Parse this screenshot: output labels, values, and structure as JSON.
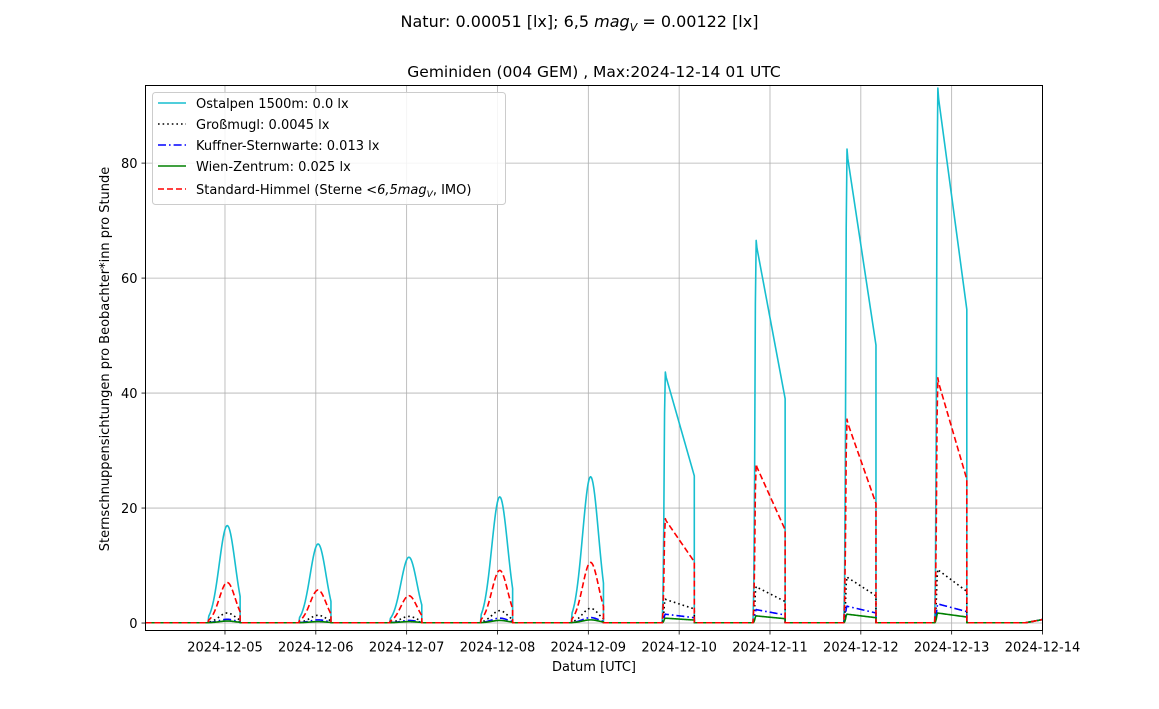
{
  "suptitle": "Natur: 0.00051 [lx]; 6,5 mag_V = 0.00122 [lx]",
  "chart_data": {
    "type": "line",
    "title": "Geminiden (004 GEM) , Max:2024-12-14 01 UTC",
    "xlabel": "Datum [UTC]",
    "ylabel": "Sternschnuppensichtungen pro Beobachter*inn pro Stunde",
    "xlim": [
      "2024-12-04 03:00",
      "2024-12-14 00:00"
    ],
    "ylim": [
      -1.3,
      93.5
    ],
    "grid": true,
    "legend_position": "upper left",
    "xticks": [
      "2024-12-05",
      "2024-12-06",
      "2024-12-07",
      "2024-12-08",
      "2024-12-09",
      "2024-12-10",
      "2024-12-11",
      "2024-12-12",
      "2024-12-13",
      "2024-12-14"
    ],
    "yticks": [
      0,
      20,
      40,
      60,
      80
    ],
    "nights": [
      {
        "rise": "2024-12-04 19:30",
        "set": "2024-12-05 04:00",
        "peak": 16.9
      },
      {
        "rise": "2024-12-05 19:30",
        "set": "2024-12-06 04:00",
        "peak": 13.7
      },
      {
        "rise": "2024-12-06 19:30",
        "set": "2024-12-07 04:00",
        "peak": 11.4
      },
      {
        "rise": "2024-12-07 19:30",
        "set": "2024-12-08 04:00",
        "peak": 21.9
      },
      {
        "rise": "2024-12-08 19:30",
        "set": "2024-12-09 04:00",
        "peak": 25.4
      },
      {
        "rise": "2024-12-09 19:30",
        "set": "2024-12-10 04:00",
        "peak": 43.6
      },
      {
        "rise": "2024-12-10 19:30",
        "set": "2024-12-11 04:00",
        "peak": 66.5
      },
      {
        "rise": "2024-12-11 19:30",
        "set": "2024-12-12 04:00",
        "peak": 82.4
      },
      {
        "rise": "2024-12-12 19:30",
        "set": "2024-12-13 04:00",
        "peak": 93.0
      },
      {
        "rise": "2024-12-13 19:30",
        "set": "2024-12-14 00:00",
        "peak": 0.6
      }
    ],
    "series": [
      {
        "name": "Ostalpen 1500m: 0.0 lx",
        "color": "#17becf",
        "style": "solid",
        "factor": 1.0,
        "peaks": [
          16.9,
          13.7,
          11.4,
          21.9,
          25.4,
          43.6,
          66.5,
          82.4,
          93.0,
          0.6
        ]
      },
      {
        "name": "Großmugl: 0.0045 lx",
        "color": "#000000",
        "style": "dotted",
        "factor": 0.1,
        "peaks": [
          1.7,
          1.3,
          1.1,
          2.1,
          2.5,
          4.1,
          6.3,
          8.0,
          9.3,
          0.6
        ]
      },
      {
        "name": "Kuffner-Sternwarte: 0.013 lx",
        "color": "#0000ff",
        "style": "dashdot",
        "factor": 0.035,
        "peaks": [
          0.6,
          0.5,
          0.4,
          0.8,
          0.9,
          1.5,
          2.3,
          2.9,
          3.3,
          0.6
        ]
      },
      {
        "name": "Wien-Zentrum: 0.025 lx",
        "color": "#008000",
        "style": "solid",
        "factor": 0.018,
        "peaks": [
          0.3,
          0.2,
          0.2,
          0.4,
          0.5,
          0.8,
          1.2,
          1.5,
          1.7,
          0.6
        ]
      },
      {
        "name": "Standard-Himmel (Sterne <6,5mag_V, IMO)",
        "color": "#ff0000",
        "style": "dashed",
        "factor": 0.415,
        "peaks": [
          7.0,
          5.7,
          4.7,
          9.1,
          10.5,
          18.1,
          27.6,
          35.4,
          42.6,
          0.6
        ]
      }
    ]
  },
  "legend": {
    "entries": [
      "Ostalpen 1500m: 0.0 lx",
      "Großmugl: 0.0045 lx",
      "Kuffner-Sternwarte: 0.013 lx",
      "Wien-Zentrum: 0.025 lx"
    ],
    "standard_prefix": "Standard-Himmel (Sterne ",
    "standard_math": "<6,5mag",
    "standard_sub": "V",
    "standard_suffix": ", IMO)"
  },
  "suptitle_parts": {
    "pre": "Natur: 0.00051 [lx]; 6,5 ",
    "mag": "mag",
    "sub": "V",
    "post": " = 0.00122 [lx]"
  }
}
